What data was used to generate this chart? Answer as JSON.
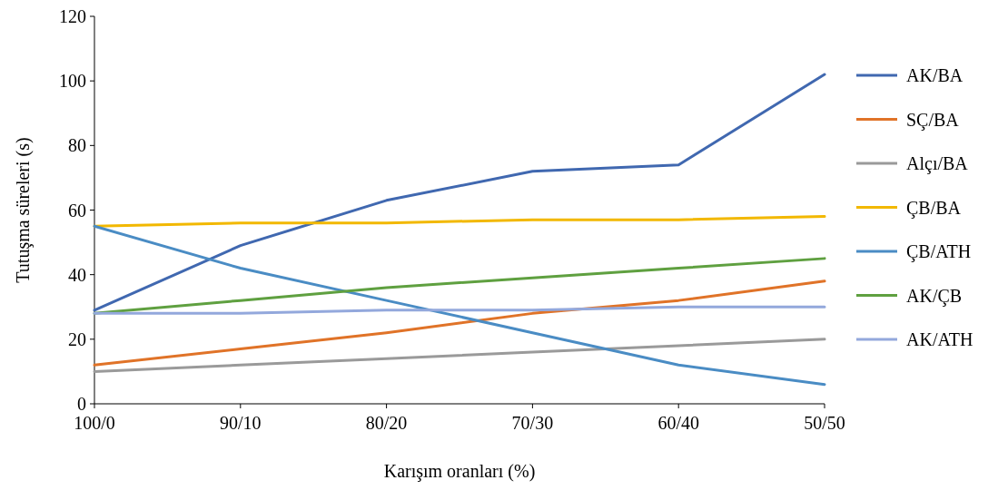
{
  "chart_data": {
    "type": "line",
    "xlabel": "Karışım oranları (%)",
    "ylabel": "Tutuşma süreleri (s)",
    "categories": [
      "100/0",
      "90/10",
      "80/20",
      "70/30",
      "60/40",
      "50/50"
    ],
    "ylim": [
      0,
      120
    ],
    "yticks": [
      0,
      20,
      40,
      60,
      80,
      100,
      120
    ],
    "grid": false,
    "legend": "right",
    "marker": "none",
    "line_style": "solid",
    "series": [
      {
        "name": "AK/BA",
        "color": "#4068b0",
        "values": [
          29,
          49,
          63,
          72,
          74,
          102
        ]
      },
      {
        "name": "SÇ/BA",
        "color": "#e07328",
        "values": [
          12,
          17,
          22,
          28,
          32,
          38
        ]
      },
      {
        "name": "Alçı/BA",
        "color": "#9a9a9a",
        "values": [
          10,
          12,
          14,
          16,
          18,
          20
        ]
      },
      {
        "name": "ÇB/BA",
        "color": "#f2b800",
        "values": [
          55,
          56,
          56,
          57,
          57,
          58
        ]
      },
      {
        "name": "ÇB/ATH",
        "color": "#4a8cc4",
        "values": [
          55,
          42,
          32,
          22,
          12,
          6
        ]
      },
      {
        "name": "AK/ÇB",
        "color": "#5fa040",
        "values": [
          28,
          32,
          36,
          39,
          42,
          45
        ]
      },
      {
        "name": "AK/ATH",
        "color": "#93a8dc",
        "values": [
          28,
          28,
          29,
          29,
          30,
          30
        ]
      }
    ]
  }
}
